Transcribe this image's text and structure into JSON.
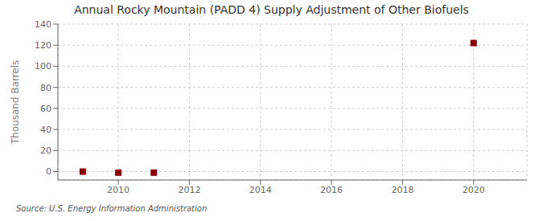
{
  "chart_data": {
    "type": "scatter",
    "title": "Annual Rocky Mountain (PADD 4) Supply Adjustment of Other Biofuels",
    "y_label": "Thousand Barrels",
    "annotations": [
      "Source: U.S. Energy Information Administration"
    ],
    "x": [
      2009,
      2010,
      2011,
      2020
    ],
    "values": [
      0,
      -1,
      -1,
      122
    ],
    "color": "#8b0000",
    "marker": "square",
    "xlim": [
      2008.3,
      2021.5
    ],
    "ylim": [
      -8,
      140
    ],
    "xticks": [
      2010,
      2012,
      2014,
      2016,
      2018,
      2020
    ],
    "yticks": [
      0,
      20,
      40,
      60,
      80,
      100,
      120,
      140
    ],
    "grid": true
  }
}
